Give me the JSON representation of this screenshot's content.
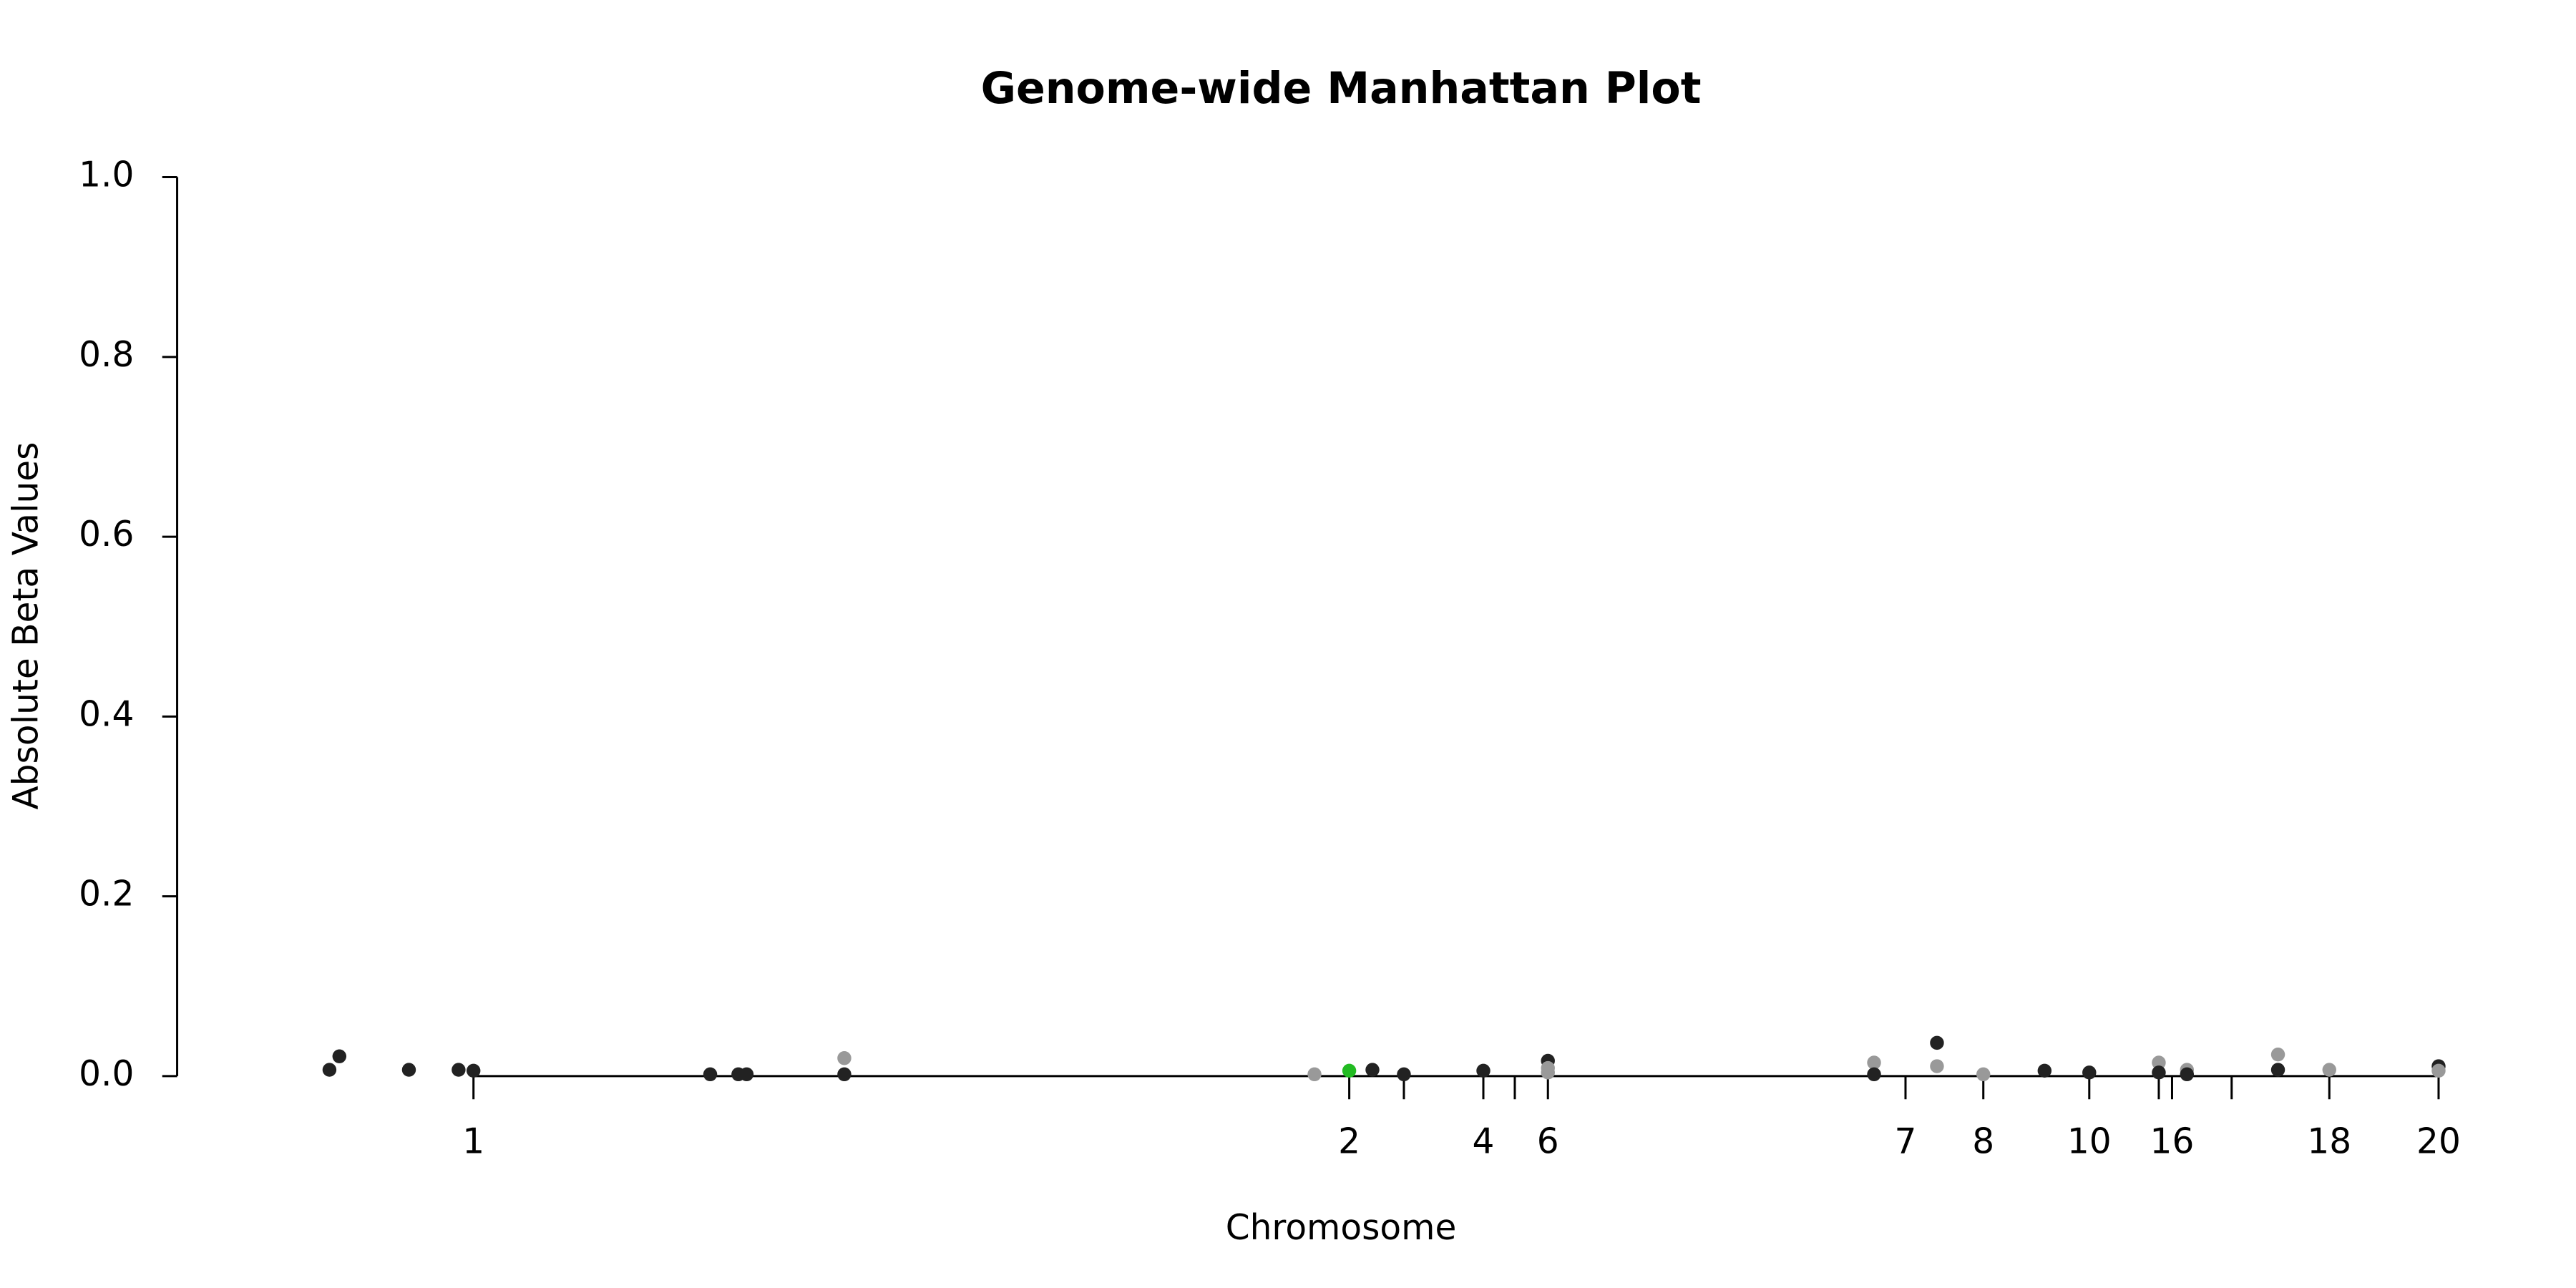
{
  "chart_data": {
    "type": "scatter",
    "title": "Genome-wide Manhattan Plot",
    "x_label": "Chromosome",
    "y_label": "Absolute Beta Values",
    "xlim": [
      0,
      1400
    ],
    "ylim": [
      0,
      1.0
    ],
    "yticks": [
      {
        "value": 0,
        "label": "0.0"
      },
      {
        "value": 0.2,
        "label": "0.2"
      },
      {
        "value": 0.4,
        "label": "0.4"
      },
      {
        "value": 0.6,
        "label": "0.6"
      },
      {
        "value": 0.8,
        "label": "0.8"
      },
      {
        "value": 1.0,
        "label": "1.0"
      }
    ],
    "xticks": [
      {
        "value": 179,
        "label": "1"
      },
      {
        "value": 708,
        "label": "2"
      },
      {
        "value": 741,
        "label": null
      },
      {
        "value": 789,
        "label": "4"
      },
      {
        "value": 808,
        "label": null
      },
      {
        "value": 828,
        "label": "6"
      },
      {
        "value": 1044,
        "label": "7"
      },
      {
        "value": 1091,
        "label": "8"
      },
      {
        "value": 1155,
        "label": "10"
      },
      {
        "value": 1197,
        "label": null
      },
      {
        "value": 1205,
        "label": "16"
      },
      {
        "value": 1241,
        "label": null
      },
      {
        "value": 1300,
        "label": "18"
      },
      {
        "value": 1366,
        "label": "20"
      }
    ],
    "x": [
      92,
      98,
      140,
      170,
      179,
      322,
      339,
      344,
      403,
      403,
      687,
      708,
      722,
      741,
      789,
      828,
      828,
      828,
      1025,
      1025,
      1063,
      1063,
      1091,
      1128,
      1155,
      1197,
      1197,
      1214,
      1214,
      1269,
      1269,
      1300,
      1366,
      1366
    ],
    "values": [
      0.007,
      0.022,
      0.007,
      0.007,
      0.006,
      0.002,
      0.002,
      0.002,
      0.02,
      0.002,
      0.002,
      0.006,
      0.007,
      0.002,
      0.006,
      0.017,
      0.009,
      0.004,
      0.015,
      0.002,
      0.037,
      0.011,
      0.002,
      0.006,
      0.004,
      0.015,
      0.004,
      0.007,
      0.002,
      0.024,
      0.007,
      0.007,
      0.011,
      0.006
    ],
    "colors": [
      "#222222",
      "#222222",
      "#222222",
      "#222222",
      "#222222",
      "#222222",
      "#222222",
      "#222222",
      "#999999",
      "#222222",
      "#999999",
      "#22bb22",
      "#222222",
      "#222222",
      "#222222",
      "#222222",
      "#999999",
      "#999999",
      "#999999",
      "#222222",
      "#222222",
      "#999999",
      "#999999",
      "#222222",
      "#222222",
      "#999999",
      "#222222",
      "#999999",
      "#222222",
      "#999999",
      "#222222",
      "#999999",
      "#222222",
      "#999999"
    ]
  }
}
